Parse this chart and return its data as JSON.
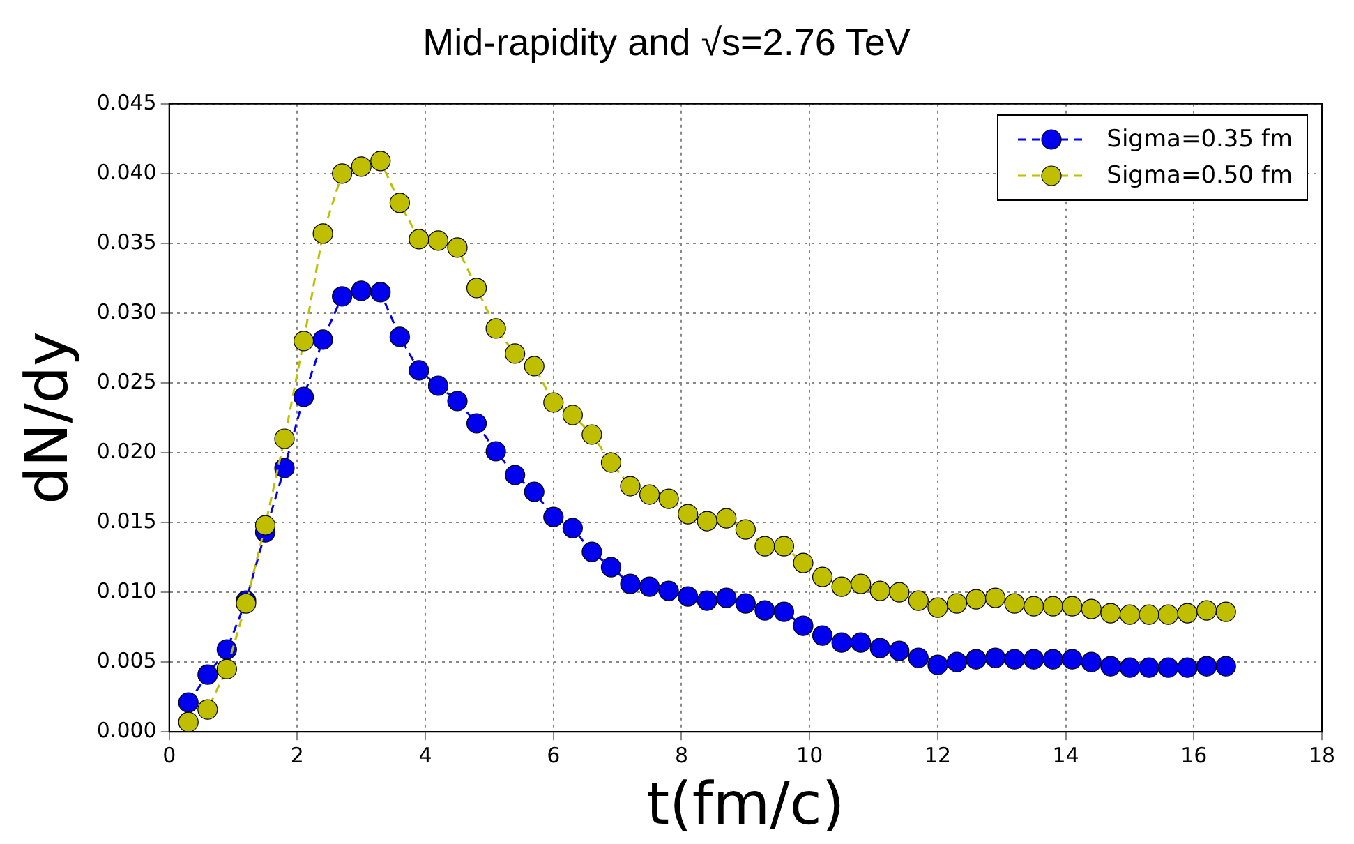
{
  "chart_data": {
    "type": "line",
    "title": "Mid-rapidity and √s=2.76 TeV",
    "xlabel": "t(fm/c)",
    "ylabel": "dN/dy",
    "x": [
      0.3,
      0.6,
      0.9,
      1.2,
      1.5,
      1.8,
      2.1,
      2.4,
      2.7,
      3.0,
      3.3,
      3.6,
      3.9,
      4.2,
      4.5,
      4.8,
      5.1,
      5.4,
      5.7,
      6.0,
      6.3,
      6.6,
      6.9,
      7.2,
      7.5,
      7.8,
      8.1,
      8.4,
      8.7,
      9.0,
      9.3,
      9.6,
      9.9,
      10.2,
      10.5,
      10.8,
      11.1,
      11.4,
      11.7,
      12.0,
      12.3,
      12.6,
      12.9,
      13.2,
      13.5,
      13.8,
      14.1,
      14.4,
      14.7,
      15.0,
      15.3,
      15.6,
      15.9,
      16.2,
      16.5
    ],
    "series": [
      {
        "name": "Sigma=0.35 fm",
        "color": "#0000ee",
        "values": [
          0.0021,
          0.0041,
          0.0059,
          0.0094,
          0.0143,
          0.0189,
          0.024,
          0.0281,
          0.0312,
          0.0316,
          0.0315,
          0.0283,
          0.0259,
          0.0248,
          0.0237,
          0.0221,
          0.0201,
          0.0184,
          0.0172,
          0.0154,
          0.0146,
          0.0129,
          0.0118,
          0.0106,
          0.0104,
          0.0101,
          0.0097,
          0.0094,
          0.0096,
          0.0092,
          0.0087,
          0.0086,
          0.0076,
          0.0069,
          0.0064,
          0.0064,
          0.006,
          0.0058,
          0.0053,
          0.0048,
          0.005,
          0.0052,
          0.0053,
          0.0052,
          0.0052,
          0.0052,
          0.0052,
          0.005,
          0.0047,
          0.0046,
          0.0046,
          0.0046,
          0.0046,
          0.0047,
          0.0047
        ]
      },
      {
        "name": "Sigma=0.50 fm",
        "color": "#bfbf00",
        "values": [
          0.0007,
          0.0016,
          0.0045,
          0.0092,
          0.0148,
          0.021,
          0.028,
          0.0357,
          0.04,
          0.0405,
          0.0409,
          0.0379,
          0.0353,
          0.0352,
          0.0347,
          0.0318,
          0.0289,
          0.0271,
          0.0262,
          0.0236,
          0.0227,
          0.0213,
          0.0193,
          0.0176,
          0.017,
          0.0167,
          0.0156,
          0.0151,
          0.0153,
          0.0145,
          0.0133,
          0.0133,
          0.0121,
          0.0111,
          0.0104,
          0.0106,
          0.0101,
          0.01,
          0.0094,
          0.0089,
          0.0092,
          0.0095,
          0.0096,
          0.0092,
          0.009,
          0.009,
          0.009,
          0.0088,
          0.0085,
          0.0084,
          0.0084,
          0.0084,
          0.0085,
          0.0087,
          0.0086
        ]
      }
    ],
    "xlim": [
      0,
      18
    ],
    "xticks": [
      0,
      2,
      4,
      6,
      8,
      10,
      12,
      14,
      16,
      18
    ],
    "ylim": [
      0,
      0.045
    ],
    "yticks": [
      {
        "value": 0,
        "label": "0.000"
      },
      {
        "value": 0.005,
        "label": "0.005"
      },
      {
        "value": 0.01,
        "label": "0.010"
      },
      {
        "value": 0.015,
        "label": "0.015"
      },
      {
        "value": 0.02,
        "label": "0.020"
      },
      {
        "value": 0.025,
        "label": "0.025"
      },
      {
        "value": 0.03,
        "label": "0.030"
      },
      {
        "value": 0.035,
        "label": "0.035"
      },
      {
        "value": 0.04,
        "label": "0.040"
      },
      {
        "value": 0.045,
        "label": "0.045"
      }
    ],
    "grid": true,
    "legend": "top right",
    "marker": "circle",
    "line_style": "dashed"
  }
}
